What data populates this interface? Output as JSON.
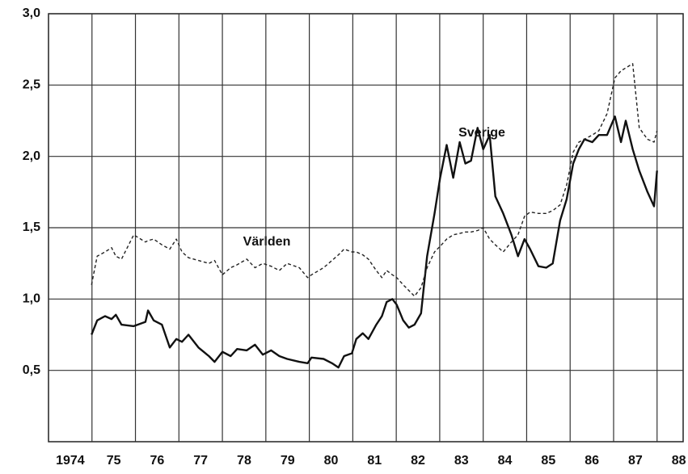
{
  "chart_data": {
    "type": "line",
    "x": [
      1974.99,
      1975.12,
      1975.3,
      1975.45,
      1975.55,
      1975.68,
      1975.96,
      1976.23,
      1976.29,
      1976.42,
      1976.61,
      1976.79,
      1976.94,
      1977.07,
      1977.22,
      1977.45,
      1977.69,
      1977.82,
      1978.0,
      1978.19,
      1978.34,
      1978.56,
      1978.75,
      1978.93,
      1979.12,
      1979.31,
      1979.49,
      1979.77,
      1979.96,
      1980.05,
      1980.33,
      1980.52,
      1980.67,
      1980.8,
      1980.98,
      1981.08,
      1981.23,
      1981.36,
      1981.54,
      1981.67,
      1981.78,
      1981.91,
      1982.01,
      1982.16,
      1982.29,
      1982.42,
      1982.57,
      1982.71,
      1982.88,
      1983.01,
      1983.16,
      1983.31,
      1983.46,
      1983.59,
      1983.72,
      1983.87,
      1984.0,
      1984.15,
      1984.28,
      1984.46,
      1984.65,
      1984.8,
      1984.95,
      1985.08,
      1985.27,
      1985.45,
      1985.6,
      1985.77,
      1985.92,
      1986.07,
      1986.2,
      1986.33,
      1986.51,
      1986.66,
      1986.85,
      1987.03,
      1987.17,
      1987.28,
      1987.44,
      1987.59,
      1987.78,
      1987.93,
      1988.0
    ],
    "series": [
      {
        "name": "Sverige",
        "color": "#111111",
        "style": "solid",
        "values": [
          0.75,
          0.85,
          0.88,
          0.86,
          0.89,
          0.82,
          0.81,
          0.84,
          0.92,
          0.85,
          0.82,
          0.66,
          0.72,
          0.7,
          0.75,
          0.66,
          0.6,
          0.56,
          0.63,
          0.6,
          0.65,
          0.64,
          0.68,
          0.61,
          0.64,
          0.6,
          0.58,
          0.56,
          0.55,
          0.59,
          0.58,
          0.55,
          0.52,
          0.6,
          0.62,
          0.72,
          0.76,
          0.72,
          0.82,
          0.88,
          0.98,
          1.0,
          0.96,
          0.85,
          0.8,
          0.82,
          0.9,
          1.3,
          1.6,
          1.85,
          2.08,
          1.85,
          2.1,
          1.95,
          1.97,
          2.2,
          2.05,
          2.15,
          1.72,
          1.6,
          1.45,
          1.3,
          1.42,
          1.35,
          1.23,
          1.22,
          1.25,
          1.55,
          1.7,
          1.95,
          2.05,
          2.12,
          2.1,
          2.15,
          2.15,
          2.28,
          2.1,
          2.25,
          2.05,
          1.9,
          1.75,
          1.65,
          1.9
        ]
      },
      {
        "name": "Världen",
        "color": "#222222",
        "style": "dashed",
        "values": [
          1.1,
          1.3,
          1.33,
          1.36,
          1.3,
          1.28,
          1.45,
          1.4,
          1.41,
          1.42,
          1.38,
          1.35,
          1.42,
          1.33,
          1.29,
          1.27,
          1.25,
          1.27,
          1.17,
          1.22,
          1.24,
          1.28,
          1.22,
          1.25,
          1.23,
          1.2,
          1.25,
          1.22,
          1.15,
          1.17,
          1.22,
          1.27,
          1.31,
          1.35,
          1.33,
          1.33,
          1.31,
          1.28,
          1.2,
          1.15,
          1.2,
          1.17,
          1.15,
          1.1,
          1.06,
          1.02,
          1.08,
          1.22,
          1.33,
          1.37,
          1.42,
          1.45,
          1.46,
          1.47,
          1.47,
          1.48,
          1.5,
          1.42,
          1.38,
          1.33,
          1.4,
          1.45,
          1.58,
          1.61,
          1.6,
          1.6,
          1.62,
          1.66,
          1.8,
          2.03,
          2.1,
          2.12,
          2.15,
          2.18,
          2.3,
          2.55,
          2.6,
          2.62,
          2.65,
          2.2,
          2.12,
          2.1,
          2.18
        ]
      }
    ],
    "xlim": [
      1974,
      1988.6
    ],
    "xticks": [
      1974,
      {
        "value": 1975,
        "label": "75"
      },
      {
        "value": 1976,
        "label": "76"
      },
      {
        "value": 1977,
        "label": "77"
      },
      {
        "value": 1978,
        "label": "78"
      },
      {
        "value": 1979,
        "label": "79"
      },
      {
        "value": 1980,
        "label": "80"
      },
      {
        "value": 1981,
        "label": "81"
      },
      {
        "value": 1982,
        "label": "82"
      },
      {
        "value": 1983,
        "label": "83"
      },
      {
        "value": 1984,
        "label": "84"
      },
      {
        "value": 1985,
        "label": "85"
      },
      {
        "value": 1986,
        "label": "86"
      },
      {
        "value": 1987,
        "label": "87"
      },
      {
        "value": 1988,
        "label": "88"
      }
    ],
    "ylim": [
      0,
      3
    ],
    "yticks": [
      {
        "value": 0.5,
        "label": "0,5"
      },
      {
        "value": 1,
        "label": "1,0"
      },
      {
        "value": 1.5,
        "label": "1,5"
      },
      {
        "value": 2,
        "label": "2,0"
      },
      {
        "value": 2.5,
        "label": "2,5"
      },
      {
        "value": 3,
        "label": "3,0"
      }
    ],
    "grid": true
  }
}
